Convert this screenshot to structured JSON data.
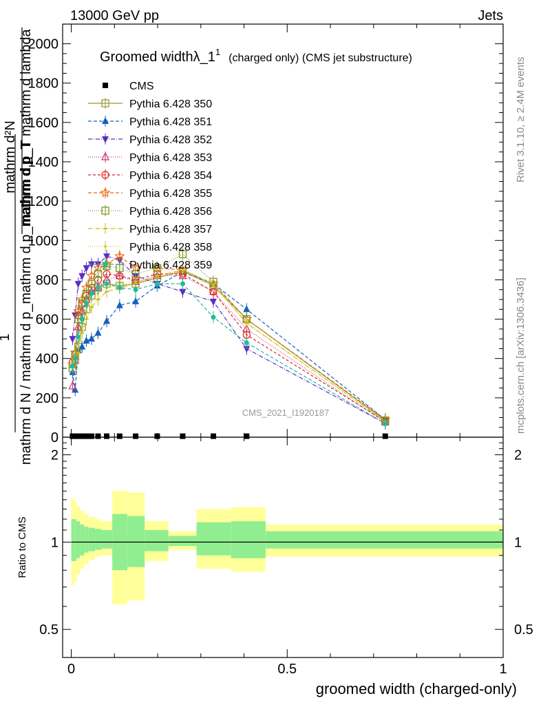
{
  "header": {
    "left": "13000 GeV pp",
    "right": "Jets"
  },
  "side_labels": {
    "rivet": "Rivet 3.1.10, ≥ 2.4M events",
    "mcplots": "mcplots.cern.ch [arXiv:1306.3436]"
  },
  "watermark": "CMS_2021_I1920187",
  "chart_data": [
    {
      "type": "line",
      "title": "Groomed width",
      "title_symbol": "λ_1",
      "title_superscript": "1",
      "title_suffix": "(charged only) (CMS jet substructure)",
      "ylabel": {
        "numerator": "1",
        "denominator": "mathrm d N / mathrm d p_mathrm d p_mathrm d p_T",
        "numerator_inner": "mathrm d²N",
        "denominator_inner": "mathrm d p_T mathrm d lambda"
      },
      "xlim": [
        -0.02,
        1.0
      ],
      "ylim": [
        0,
        2100
      ],
      "yticks": [
        0,
        200,
        400,
        600,
        800,
        1000,
        1200,
        1400,
        1600,
        1800,
        2000
      ],
      "x": [
        0.003,
        0.009,
        0.016,
        0.025,
        0.035,
        0.047,
        0.062,
        0.082,
        0.112,
        0.149,
        0.199,
        0.258,
        0.329,
        0.406,
        0.727
      ],
      "series": [
        {
          "name": "CMS",
          "marker": "filled-square",
          "color": "#000000",
          "dash": "",
          "values": [
            5,
            5,
            5,
            5,
            5,
            5,
            5,
            5,
            5,
            5,
            5,
            5,
            5,
            5,
            5
          ]
        },
        {
          "name": "Pythia 6.428 350",
          "marker": "open-square",
          "color": "#999933",
          "dash": "",
          "values": [
            350,
            390,
            460,
            560,
            650,
            720,
            760,
            780,
            770,
            780,
            810,
            845,
            770,
            600,
            85
          ]
        },
        {
          "name": "Pythia 6.428 351",
          "marker": "filled-triangle",
          "color": "#1560bd",
          "dash": "5,3",
          "values": [
            330,
            240,
            440,
            460,
            490,
            500,
            530,
            590,
            670,
            690,
            770,
            840,
            780,
            650,
            90
          ]
        },
        {
          "name": "Pythia 6.428 352",
          "marker": "filled-triangle-down",
          "color": "#5a2fc0",
          "dash": "6,2,1,2",
          "values": [
            500,
            620,
            780,
            820,
            860,
            880,
            880,
            920,
            900,
            820,
            780,
            740,
            690,
            450,
            70
          ]
        },
        {
          "name": "Pythia 6.428 353",
          "marker": "open-triangle",
          "color": "#cc3377",
          "dash": "1,2",
          "values": [
            260,
            410,
            560,
            640,
            700,
            740,
            760,
            800,
            820,
            790,
            820,
            820,
            740,
            550,
            75
          ]
        },
        {
          "name": "Pythia 6.428 354",
          "marker": "open-circle",
          "color": "#dd2222",
          "dash": "4,3",
          "values": [
            380,
            420,
            620,
            680,
            720,
            760,
            800,
            830,
            820,
            800,
            830,
            830,
            740,
            520,
            80
          ]
        },
        {
          "name": "Pythia 6.428 355",
          "marker": "open-star",
          "color": "#ee6611",
          "dash": "5,3",
          "values": [
            370,
            430,
            640,
            700,
            760,
            820,
            860,
            880,
            920,
            860,
            860,
            850,
            780,
            600,
            90
          ]
        },
        {
          "name": "Pythia 6.428 356",
          "marker": "open-square",
          "color": "#779922",
          "dash": "1,2",
          "values": [
            350,
            420,
            600,
            680,
            730,
            780,
            830,
            870,
            860,
            830,
            860,
            930,
            790,
            600,
            85
          ]
        },
        {
          "name": "Pythia 6.428 357",
          "marker": "tick",
          "color": "#ccbb11",
          "dash": "6,2,1,2",
          "values": [
            380,
            420,
            430,
            530,
            600,
            660,
            700,
            740,
            760,
            780,
            820,
            850,
            780,
            580,
            80
          ]
        },
        {
          "name": "Pythia 6.428 358",
          "marker": "small-dot",
          "color": "#bbcc22",
          "dash": "1,2",
          "values": [
            370,
            410,
            480,
            560,
            640,
            700,
            730,
            760,
            780,
            790,
            810,
            840,
            770,
            580,
            80
          ]
        },
        {
          "name": "Pythia 6.428 359",
          "marker": "filled-circle",
          "color": "#22bb99",
          "dash": "5,3",
          "values": [
            360,
            400,
            510,
            600,
            680,
            730,
            760,
            780,
            760,
            750,
            780,
            780,
            610,
            480,
            70
          ]
        }
      ]
    },
    {
      "type": "area",
      "ylabel": "Ratio to CMS",
      "xlabel": "groomed width (charged-only)",
      "xlim": [
        -0.02,
        1.0
      ],
      "ylim": [
        0.4,
        2.3
      ],
      "ytick_labels": [
        "0.5",
        "1",
        "2"
      ],
      "yticks": [
        0.5,
        1,
        2
      ],
      "xticks": [
        0,
        0.5,
        1
      ],
      "xtick_labels": [
        "0",
        "0.5",
        "1"
      ],
      "colors": {
        "inner_band": "#90ee90",
        "outer_band": "#ffff99",
        "ref_line": "#000000"
      },
      "bins": [
        {
          "lo": 0.0,
          "hi": 0.006,
          "inner": [
            0.86,
            1.2
          ],
          "outer": [
            0.71,
            1.42
          ]
        },
        {
          "lo": 0.006,
          "hi": 0.012,
          "inner": [
            0.86,
            1.2
          ],
          "outer": [
            0.73,
            1.39
          ]
        },
        {
          "lo": 0.012,
          "hi": 0.02,
          "inner": [
            0.88,
            1.18
          ],
          "outer": [
            0.77,
            1.33
          ]
        },
        {
          "lo": 0.02,
          "hi": 0.03,
          "inner": [
            0.9,
            1.15
          ],
          "outer": [
            0.81,
            1.28
          ]
        },
        {
          "lo": 0.03,
          "hi": 0.04,
          "inner": [
            0.92,
            1.13
          ],
          "outer": [
            0.84,
            1.25
          ]
        },
        {
          "lo": 0.04,
          "hi": 0.055,
          "inner": [
            0.93,
            1.12
          ],
          "outer": [
            0.87,
            1.22
          ]
        },
        {
          "lo": 0.055,
          "hi": 0.07,
          "inner": [
            0.94,
            1.11
          ],
          "outer": [
            0.89,
            1.2
          ]
        },
        {
          "lo": 0.07,
          "hi": 0.095,
          "inner": [
            0.95,
            1.1
          ],
          "outer": [
            0.9,
            1.18
          ]
        },
        {
          "lo": 0.095,
          "hi": 0.13,
          "inner": [
            0.8,
            1.25
          ],
          "outer": [
            0.61,
            1.5
          ]
        },
        {
          "lo": 0.13,
          "hi": 0.17,
          "inner": [
            0.82,
            1.23
          ],
          "outer": [
            0.63,
            1.48
          ]
        },
        {
          "lo": 0.17,
          "hi": 0.225,
          "inner": [
            0.93,
            1.1
          ],
          "outer": [
            0.86,
            1.18
          ]
        },
        {
          "lo": 0.225,
          "hi": 0.29,
          "inner": [
            0.97,
            1.05
          ],
          "outer": [
            0.94,
            1.09
          ]
        },
        {
          "lo": 0.29,
          "hi": 0.37,
          "inner": [
            0.9,
            1.17
          ],
          "outer": [
            0.81,
            1.3
          ]
        },
        {
          "lo": 0.37,
          "hi": 0.45,
          "inner": [
            0.88,
            1.18
          ],
          "outer": [
            0.79,
            1.32
          ]
        },
        {
          "lo": 0.45,
          "hi": 1.0,
          "inner": [
            0.95,
            1.09
          ],
          "outer": [
            0.89,
            1.15
          ]
        }
      ]
    }
  ]
}
